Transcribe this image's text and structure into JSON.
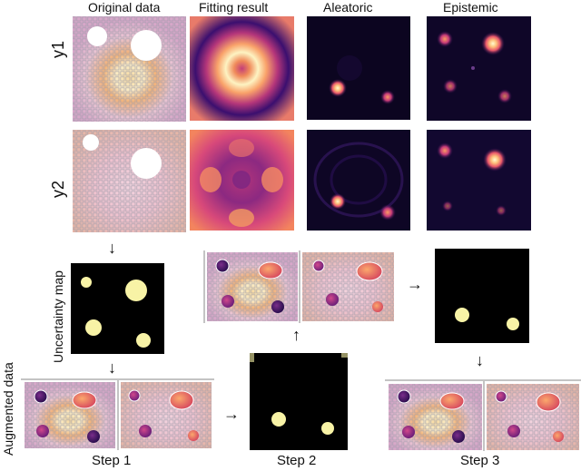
{
  "columns": [
    "Original data",
    "Fitting result",
    "Aleatoric",
    "Epistemic"
  ],
  "rows": [
    "y1",
    "y2"
  ],
  "uncertainty_label": "Uncertainty map",
  "augmented_label": "Augmented data",
  "steps": [
    "Step 1",
    "Step 2",
    "Step 3"
  ],
  "arrow_glyphs": {
    "down": "↓",
    "right": "→",
    "up": "↑"
  }
}
